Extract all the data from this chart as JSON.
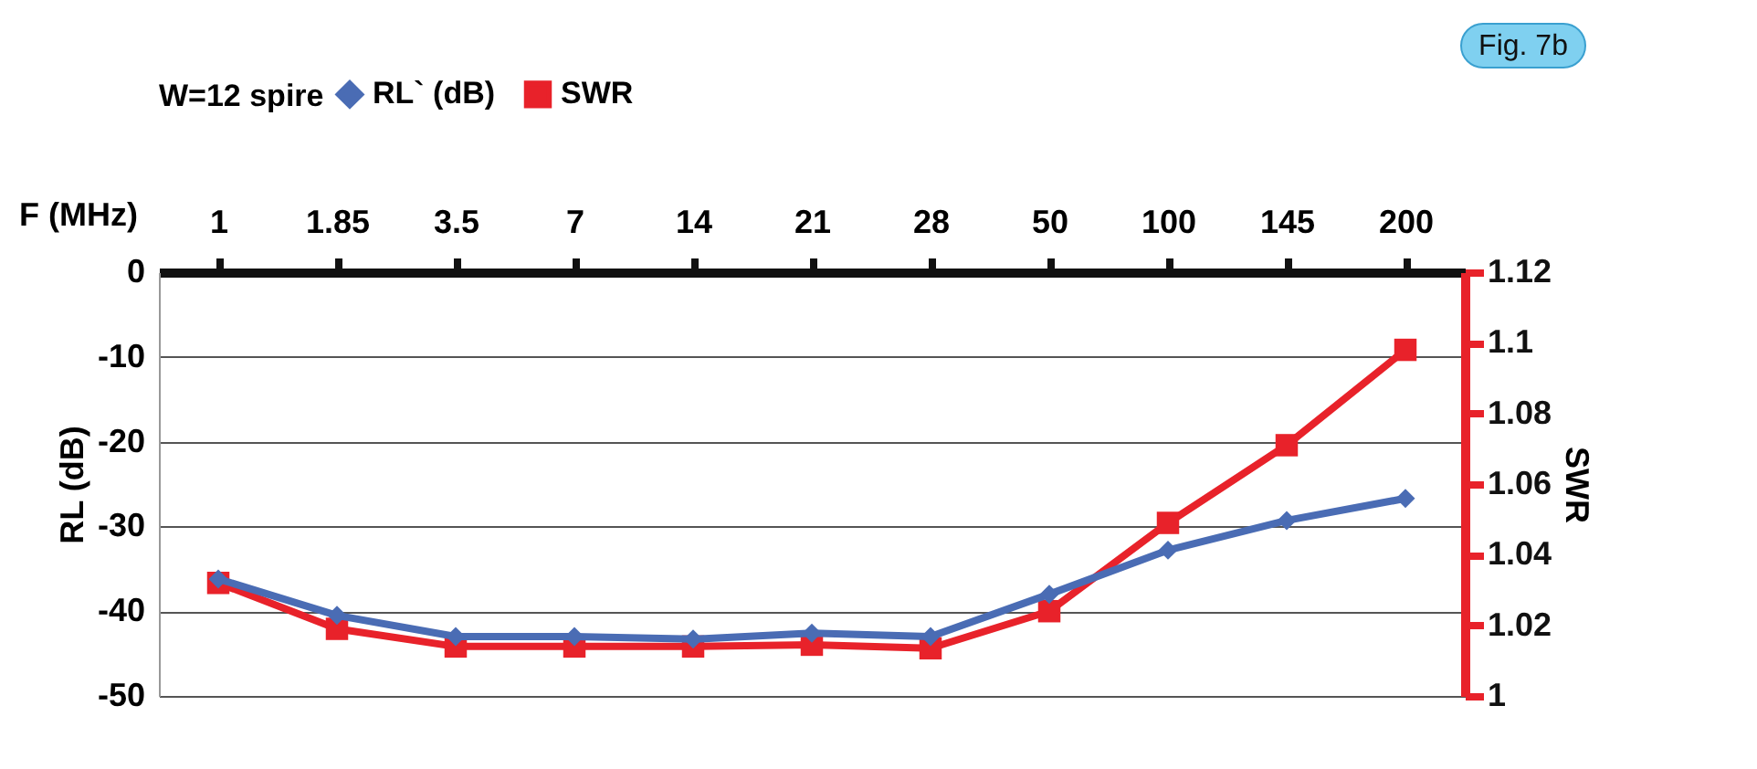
{
  "chart_data": {
    "type": "line",
    "title": "W=12 spire",
    "xlabel": "F (MHz)",
    "ylabel": "RL (dB)",
    "y2label": "SWR",
    "categories": [
      "1",
      "1.85",
      "3.5",
      "7",
      "14",
      "21",
      "28",
      "50",
      "100",
      "145",
      "200"
    ],
    "series": [
      {
        "name": "RL` (dB)",
        "color": "#4a6cb4",
        "marker": "diamond",
        "values": [
          -36.2,
          -40.5,
          -43,
          -43,
          -43.3,
          -42.6,
          -43,
          -38,
          -32.8,
          -29.3,
          -26.7
        ]
      },
      {
        "name": "SWR",
        "color": "#e8222a",
        "marker": "square",
        "axis": "y2",
        "values": [
          1.032,
          1.019,
          1.014,
          1.014,
          1.014,
          1.0145,
          1.0135,
          1.024,
          1.049,
          1.071,
          1.098
        ]
      }
    ],
    "ylim": [
      -50,
      0
    ],
    "yticks": [
      -50,
      -40,
      -30,
      -20,
      -10,
      0
    ],
    "y2lim": [
      1,
      1.12
    ],
    "y2ticks": [
      1,
      1.02,
      1.04,
      1.06,
      1.08,
      1.1,
      1.12
    ],
    "grid": "y",
    "legend": "top",
    "annotations": [
      "Fig. 7b"
    ]
  }
}
